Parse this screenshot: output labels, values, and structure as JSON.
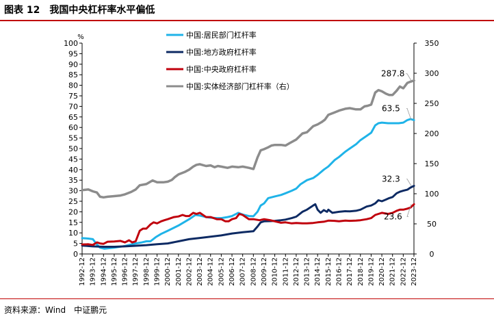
{
  "figure": {
    "number": "图表 12",
    "title": "我国中央杠杆率水平偏低",
    "source": "资料来源：Wind　中证鹏元"
  },
  "chart_data": {
    "type": "line",
    "title": "我国中央杠杆率水平偏低",
    "y_left": {
      "unit": "%",
      "lim": [
        0,
        100
      ],
      "ticks": [
        0,
        5,
        10,
        15,
        20,
        25,
        30,
        35,
        40,
        45,
        50,
        55,
        60,
        65,
        70,
        75,
        80,
        85,
        90,
        95,
        100
      ]
    },
    "y_right": {
      "lim": [
        0,
        350
      ],
      "ticks": [
        0,
        50,
        100,
        150,
        200,
        250,
        300,
        350
      ]
    },
    "x_range": [
      1992.9167,
      2023.9167
    ],
    "x_ticks": [
      "1992-12",
      "1993-12",
      "1994-12",
      "1995-12",
      "1996-12",
      "1997-12",
      "1998-12",
      "1999-12",
      "2000-12",
      "2001-12",
      "2002-12",
      "2003-12",
      "2004-12",
      "2005-12",
      "2006-12",
      "2007-12",
      "2008-12",
      "2009-12",
      "2010-12",
      "2011-12",
      "2012-12",
      "2013-12",
      "2014-12",
      "2015-12",
      "2016-12",
      "2017-12",
      "2018-12",
      "2019-12",
      "2020-12",
      "2021-12",
      "2022-12",
      "2023-12"
    ],
    "legend_position": "top-left",
    "grid": false,
    "series": [
      {
        "name": "中国:居民部门杠杆率",
        "axis": "left",
        "color": "#1fb3e8",
        "points": [
          [
            1992.92,
            7.5
          ],
          [
            1993.5,
            7.3
          ],
          [
            1993.92,
            7.0
          ],
          [
            1994.3,
            4.5
          ],
          [
            1994.6,
            3.0
          ],
          [
            1995.0,
            2.5
          ],
          [
            1995.92,
            3.0
          ],
          [
            1996.92,
            3.8
          ],
          [
            1997.92,
            5.0
          ],
          [
            1998.5,
            5.5
          ],
          [
            1998.92,
            6.0
          ],
          [
            1999.3,
            6.0
          ],
          [
            1999.8,
            8.0
          ],
          [
            2000.3,
            9.5
          ],
          [
            2000.92,
            11.0
          ],
          [
            2001.92,
            13.5
          ],
          [
            2002.92,
            16.5
          ],
          [
            2003.5,
            18.5
          ],
          [
            2003.92,
            18.2
          ],
          [
            2004.5,
            17.5
          ],
          [
            2004.92,
            17.2
          ],
          [
            2005.5,
            17.0
          ],
          [
            2005.92,
            17.0
          ],
          [
            2006.5,
            17.5
          ],
          [
            2006.92,
            18.0
          ],
          [
            2007.5,
            19.5
          ],
          [
            2007.92,
            18.7
          ],
          [
            2008.5,
            18.0
          ],
          [
            2008.92,
            17.9
          ],
          [
            2009.3,
            20.0
          ],
          [
            2009.6,
            23.0
          ],
          [
            2009.92,
            24.0
          ],
          [
            2010.3,
            26.5
          ],
          [
            2010.92,
            27.3
          ],
          [
            2011.5,
            28.0
          ],
          [
            2011.92,
            28.8
          ],
          [
            2012.5,
            30.0
          ],
          [
            2012.92,
            31.0
          ],
          [
            2013.3,
            33.0
          ],
          [
            2013.92,
            35.0
          ],
          [
            2014.5,
            36.0
          ],
          [
            2014.92,
            37.5
          ],
          [
            2015.5,
            40.0
          ],
          [
            2015.92,
            41.5
          ],
          [
            2016.5,
            44.5
          ],
          [
            2016.92,
            46.0
          ],
          [
            2017.5,
            48.5
          ],
          [
            2017.92,
            50.0
          ],
          [
            2018.5,
            52.0
          ],
          [
            2018.92,
            54.0
          ],
          [
            2019.5,
            56.0
          ],
          [
            2019.92,
            57.5
          ],
          [
            2020.3,
            61.0
          ],
          [
            2020.6,
            62.0
          ],
          [
            2020.92,
            62.3
          ],
          [
            2021.5,
            62.0
          ],
          [
            2021.92,
            62.0
          ],
          [
            2022.5,
            62.0
          ],
          [
            2022.92,
            62.3
          ],
          [
            2023.3,
            63.5
          ],
          [
            2023.6,
            64.0
          ],
          [
            2023.92,
            63.5
          ]
        ]
      },
      {
        "name": "中国:地方政府杠杆率",
        "axis": "left",
        "color": "#0d2a63",
        "points": [
          [
            1992.92,
            4.0
          ],
          [
            1993.92,
            3.6
          ],
          [
            1994.92,
            3.4
          ],
          [
            1995.92,
            3.4
          ],
          [
            1996.92,
            3.6
          ],
          [
            1997.92,
            3.9
          ],
          [
            1998.92,
            4.2
          ],
          [
            1999.92,
            4.6
          ],
          [
            2000.92,
            5.0
          ],
          [
            2001.92,
            6.0
          ],
          [
            2002.92,
            7.0
          ],
          [
            2003.92,
            7.6
          ],
          [
            2004.92,
            8.2
          ],
          [
            2005.92,
            8.8
          ],
          [
            2006.92,
            9.7
          ],
          [
            2007.92,
            10.3
          ],
          [
            2008.92,
            10.8
          ],
          [
            2009.3,
            13.0
          ],
          [
            2009.6,
            15.0
          ],
          [
            2009.92,
            15.5
          ],
          [
            2010.5,
            15.6
          ],
          [
            2010.92,
            15.7
          ],
          [
            2011.5,
            16.0
          ],
          [
            2011.92,
            16.3
          ],
          [
            2012.5,
            17.0
          ],
          [
            2012.92,
            17.7
          ],
          [
            2013.5,
            20.0
          ],
          [
            2013.92,
            21.0
          ],
          [
            2014.5,
            23.0
          ],
          [
            2014.7,
            23.6
          ],
          [
            2014.92,
            21.0
          ],
          [
            2015.2,
            19.5
          ],
          [
            2015.5,
            20.8
          ],
          [
            2015.8,
            20.0
          ],
          [
            2015.92,
            21.0
          ],
          [
            2016.3,
            19.5
          ],
          [
            2016.92,
            20.0
          ],
          [
            2017.5,
            20.3
          ],
          [
            2017.92,
            20.2
          ],
          [
            2018.5,
            20.5
          ],
          [
            2018.92,
            21.0
          ],
          [
            2019.5,
            22.5
          ],
          [
            2019.92,
            23.0
          ],
          [
            2020.3,
            24.0
          ],
          [
            2020.6,
            25.5
          ],
          [
            2020.92,
            25.0
          ],
          [
            2021.3,
            25.8
          ],
          [
            2021.6,
            26.5
          ],
          [
            2021.92,
            27.0
          ],
          [
            2022.3,
            28.8
          ],
          [
            2022.6,
            29.5
          ],
          [
            2022.92,
            30.0
          ],
          [
            2023.3,
            30.5
          ],
          [
            2023.6,
            31.5
          ],
          [
            2023.92,
            32.3
          ]
        ]
      },
      {
        "name": "中国:中央政府杠杆率",
        "axis": "left",
        "color": "#c0000c",
        "points": [
          [
            1992.92,
            4.5
          ],
          [
            1993.5,
            4.6
          ],
          [
            1993.92,
            4.3
          ],
          [
            1994.3,
            5.5
          ],
          [
            1994.6,
            5.0
          ],
          [
            1994.92,
            4.8
          ],
          [
            1995.3,
            5.8
          ],
          [
            1995.92,
            5.9
          ],
          [
            1996.5,
            6.2
          ],
          [
            1996.92,
            5.5
          ],
          [
            1997.3,
            6.5
          ],
          [
            1997.6,
            5.5
          ],
          [
            1997.92,
            6.0
          ],
          [
            1998.3,
            11.0
          ],
          [
            1998.6,
            12.0
          ],
          [
            1998.92,
            12.0
          ],
          [
            1999.3,
            14.0
          ],
          [
            1999.6,
            15.0
          ],
          [
            1999.92,
            14.5
          ],
          [
            2000.3,
            15.5
          ],
          [
            2000.6,
            16.0
          ],
          [
            2000.92,
            16.5
          ],
          [
            2001.5,
            17.5
          ],
          [
            2001.92,
            17.8
          ],
          [
            2002.3,
            18.5
          ],
          [
            2002.6,
            18.0
          ],
          [
            2002.92,
            18.0
          ],
          [
            2003.3,
            19.5
          ],
          [
            2003.6,
            19.0
          ],
          [
            2003.92,
            19.5
          ],
          [
            2004.5,
            17.5
          ],
          [
            2004.92,
            17.5
          ],
          [
            2005.5,
            16.5
          ],
          [
            2005.92,
            16.5
          ],
          [
            2006.3,
            15.5
          ],
          [
            2006.6,
            15.5
          ],
          [
            2006.92,
            16.5
          ],
          [
            2007.3,
            17.0
          ],
          [
            2007.6,
            19.0
          ],
          [
            2007.92,
            18.5
          ],
          [
            2008.5,
            16.5
          ],
          [
            2008.92,
            16.5
          ],
          [
            2009.5,
            16.0
          ],
          [
            2009.92,
            16.5
          ],
          [
            2010.5,
            16.0
          ],
          [
            2010.92,
            15.5
          ],
          [
            2011.5,
            14.8
          ],
          [
            2011.92,
            15.0
          ],
          [
            2012.5,
            14.5
          ],
          [
            2012.92,
            14.7
          ],
          [
            2013.5,
            14.5
          ],
          [
            2013.92,
            14.5
          ],
          [
            2014.5,
            14.7
          ],
          [
            2014.92,
            15.0
          ],
          [
            2015.5,
            15.3
          ],
          [
            2015.92,
            15.8
          ],
          [
            2016.5,
            15.7
          ],
          [
            2016.92,
            15.5
          ],
          [
            2017.5,
            15.8
          ],
          [
            2017.92,
            15.7
          ],
          [
            2018.5,
            15.8
          ],
          [
            2018.92,
            16.0
          ],
          [
            2019.5,
            16.5
          ],
          [
            2019.92,
            17.0
          ],
          [
            2020.3,
            18.5
          ],
          [
            2020.6,
            19.0
          ],
          [
            2020.92,
            19.5
          ],
          [
            2021.5,
            19.0
          ],
          [
            2021.92,
            19.5
          ],
          [
            2022.3,
            20.5
          ],
          [
            2022.6,
            21.0
          ],
          [
            2022.92,
            21.0
          ],
          [
            2023.3,
            21.5
          ],
          [
            2023.6,
            22.0
          ],
          [
            2023.92,
            23.6
          ]
        ]
      },
      {
        "name": "中国:实体经济部门杠杆率（右）",
        "axis": "right",
        "color": "#8c8c8c",
        "points": [
          [
            1992.92,
            106
          ],
          [
            1993.5,
            107
          ],
          [
            1993.92,
            104
          ],
          [
            1994.3,
            102
          ],
          [
            1994.6,
            95
          ],
          [
            1994.92,
            94
          ],
          [
            1995.3,
            95
          ],
          [
            1995.92,
            96
          ],
          [
            1996.5,
            97
          ],
          [
            1996.92,
            99
          ],
          [
            1997.5,
            103
          ],
          [
            1997.92,
            107
          ],
          [
            1998.3,
            114
          ],
          [
            1998.92,
            116
          ],
          [
            1999.5,
            122
          ],
          [
            1999.92,
            119
          ],
          [
            2000.5,
            119
          ],
          [
            2000.92,
            120
          ],
          [
            2001.3,
            123
          ],
          [
            2001.6,
            128
          ],
          [
            2001.92,
            132
          ],
          [
            2002.5,
            136
          ],
          [
            2002.92,
            140
          ],
          [
            2003.3,
            145
          ],
          [
            2003.6,
            148
          ],
          [
            2003.92,
            149
          ],
          [
            2004.5,
            146
          ],
          [
            2004.92,
            147
          ],
          [
            2005.3,
            144
          ],
          [
            2005.6,
            146
          ],
          [
            2005.92,
            145
          ],
          [
            2006.5,
            143
          ],
          [
            2006.92,
            145
          ],
          [
            2007.5,
            144
          ],
          [
            2007.92,
            145
          ],
          [
            2008.5,
            143
          ],
          [
            2008.92,
            141
          ],
          [
            2009.3,
            160
          ],
          [
            2009.6,
            172
          ],
          [
            2009.92,
            174
          ],
          [
            2010.3,
            177
          ],
          [
            2010.6,
            180
          ],
          [
            2010.92,
            181
          ],
          [
            2011.5,
            181
          ],
          [
            2011.92,
            180
          ],
          [
            2012.3,
            184
          ],
          [
            2012.92,
            190
          ],
          [
            2013.5,
            200
          ],
          [
            2013.92,
            202
          ],
          [
            2014.5,
            212
          ],
          [
            2014.92,
            215
          ],
          [
            2015.3,
            219
          ],
          [
            2015.6,
            223
          ],
          [
            2015.92,
            231
          ],
          [
            2016.5,
            235
          ],
          [
            2016.92,
            238
          ],
          [
            2017.5,
            241
          ],
          [
            2017.92,
            242
          ],
          [
            2018.5,
            240
          ],
          [
            2018.92,
            240
          ],
          [
            2019.3,
            245
          ],
          [
            2019.6,
            246
          ],
          [
            2019.92,
            248
          ],
          [
            2020.3,
            268
          ],
          [
            2020.6,
            272
          ],
          [
            2020.92,
            270
          ],
          [
            2021.3,
            266
          ],
          [
            2021.6,
            264
          ],
          [
            2021.92,
            264
          ],
          [
            2022.3,
            271
          ],
          [
            2022.6,
            278
          ],
          [
            2022.92,
            275
          ],
          [
            2023.3,
            284
          ],
          [
            2023.6,
            286
          ],
          [
            2023.92,
            287.8
          ]
        ]
      }
    ],
    "annotations": [
      {
        "text": "287.8",
        "series": 3
      },
      {
        "text": "63.5",
        "series": 0
      },
      {
        "text": "32.3",
        "series": 1
      },
      {
        "text": "23.6",
        "series": 2
      }
    ]
  }
}
